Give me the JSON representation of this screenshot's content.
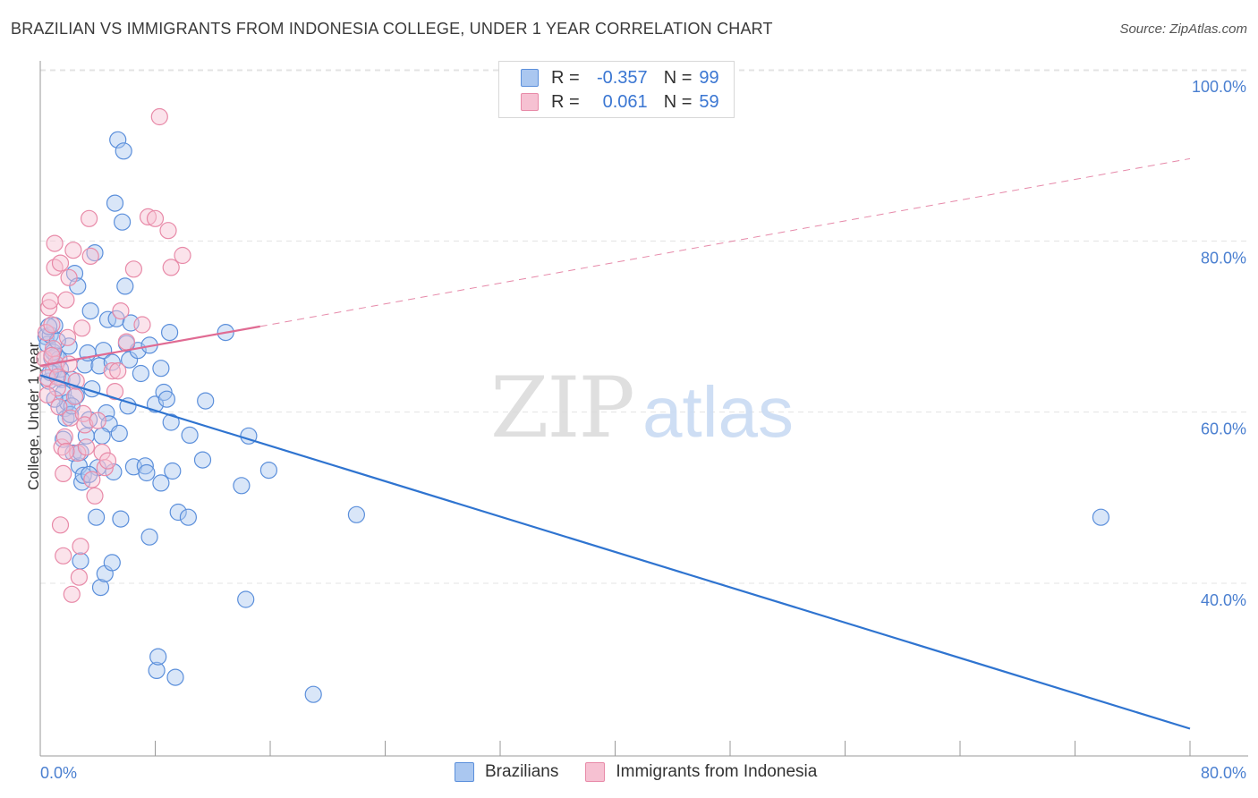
{
  "title": "BRAZILIAN VS IMMIGRANTS FROM INDONESIA COLLEGE, UNDER 1 YEAR CORRELATION CHART",
  "source": "Source: ZipAtlas.com",
  "watermark": {
    "zip": "ZIP",
    "atlas": "atlas"
  },
  "colors": {
    "blue": "#5b8fdb",
    "blue_fill": "#aac7f0",
    "blue_line": "#2f74d0",
    "pink": "#e88aa8",
    "pink_fill": "#f6c1d2",
    "pink_line": "#e06b93",
    "tick": "#4a7fd0",
    "grid": "#e3e3e3"
  },
  "legend": {
    "rows": [
      {
        "r_label": "R =",
        "r_value": "-0.357",
        "n_label": "N =",
        "n_value": "99"
      },
      {
        "r_label": "R =",
        "r_value": "0.061",
        "n_label": "N =",
        "n_value": "59"
      }
    ]
  },
  "bottom_legend": [
    "Brazilians",
    "Immigrants from Indonesia"
  ],
  "chart_data": {
    "type": "scatter",
    "title": "BRAZILIAN VS IMMIGRANTS FROM INDONESIA COLLEGE, UNDER 1 YEAR CORRELATION CHART",
    "xlabel": "",
    "ylabel": "College, Under 1 year",
    "xlim": [
      0,
      80
    ],
    "ylim": [
      20,
      102
    ],
    "x_tick_labels": [
      "0.0%",
      "80.0%"
    ],
    "y_ticks": [
      40,
      60,
      80,
      100
    ],
    "y_tick_labels": [
      "40.0%",
      "60.0%",
      "80.0%",
      "100.0%"
    ],
    "series": [
      {
        "name": "Brazilians",
        "color": "blue",
        "trend": {
          "x": [
            0,
            80
          ],
          "y": [
            66.3,
            25.0
          ],
          "dashed_from": null
        },
        "points": [
          [
            0.4,
            70.8
          ],
          [
            0.5,
            69.9
          ],
          [
            0.6,
            65.6
          ],
          [
            0.7,
            71.0
          ],
          [
            0.8,
            68.3
          ],
          [
            0.9,
            66.8
          ],
          [
            1.0,
            72.1
          ],
          [
            1.1,
            68.6
          ],
          [
            1.2,
            66.1
          ],
          [
            1.3,
            68.2
          ],
          [
            1.4,
            67.0
          ],
          [
            1.5,
            65.8
          ],
          [
            1.6,
            64.2
          ],
          [
            1.7,
            62.4
          ],
          [
            1.8,
            61.3
          ],
          [
            1.9,
            63.1
          ],
          [
            2.0,
            69.7
          ],
          [
            2.1,
            61.7
          ],
          [
            2.2,
            65.8
          ],
          [
            2.3,
            57.2
          ],
          [
            2.4,
            78.2
          ],
          [
            2.5,
            63.9
          ],
          [
            2.6,
            76.7
          ],
          [
            2.7,
            55.7
          ],
          [
            2.8,
            44.6
          ],
          [
            2.9,
            53.8
          ],
          [
            3.0,
            54.6
          ],
          [
            3.1,
            67.5
          ],
          [
            3.2,
            59.2
          ],
          [
            3.3,
            68.9
          ],
          [
            3.4,
            61.1
          ],
          [
            3.5,
            73.8
          ],
          [
            3.6,
            64.7
          ],
          [
            3.8,
            80.6
          ],
          [
            3.9,
            49.7
          ],
          [
            4.0,
            55.5
          ],
          [
            4.1,
            67.4
          ],
          [
            4.2,
            41.5
          ],
          [
            4.4,
            69.2
          ],
          [
            4.5,
            43.1
          ],
          [
            4.6,
            61.9
          ],
          [
            4.7,
            72.8
          ],
          [
            4.8,
            60.6
          ],
          [
            5.0,
            44.4
          ],
          [
            5.1,
            55.0
          ],
          [
            5.2,
            86.4
          ],
          [
            5.3,
            72.9
          ],
          [
            5.4,
            93.8
          ],
          [
            5.5,
            59.5
          ],
          [
            5.6,
            49.5
          ],
          [
            5.7,
            84.2
          ],
          [
            5.8,
            92.5
          ],
          [
            5.9,
            76.7
          ],
          [
            6.1,
            62.7
          ],
          [
            6.2,
            68.1
          ],
          [
            6.3,
            72.4
          ],
          [
            6.5,
            55.6
          ],
          [
            6.8,
            69.2
          ],
          [
            7.0,
            66.5
          ],
          [
            7.3,
            55.7
          ],
          [
            7.4,
            54.9
          ],
          [
            7.6,
            47.4
          ],
          [
            8.0,
            62.9
          ],
          [
            8.1,
            31.8
          ],
          [
            8.2,
            33.4
          ],
          [
            8.4,
            53.7
          ],
          [
            8.6,
            64.3
          ],
          [
            8.8,
            63.5
          ],
          [
            9.0,
            71.3
          ],
          [
            9.1,
            60.8
          ],
          [
            9.2,
            55.1
          ],
          [
            9.4,
            31.0
          ],
          [
            9.6,
            50.3
          ],
          [
            10.3,
            49.7
          ],
          [
            10.4,
            59.3
          ],
          [
            11.3,
            56.4
          ],
          [
            11.5,
            63.3
          ],
          [
            12.9,
            71.3
          ],
          [
            14.0,
            53.4
          ],
          [
            14.3,
            40.1
          ],
          [
            14.5,
            59.2
          ],
          [
            15.9,
            55.2
          ],
          [
            19.0,
            29.0
          ],
          [
            22.0,
            50.0
          ],
          [
            73.8,
            49.7
          ],
          [
            0.9,
            69.0
          ],
          [
            1.2,
            70.3
          ],
          [
            1.6,
            58.8
          ],
          [
            2.2,
            62.7
          ],
          [
            3.4,
            54.7
          ],
          [
            5.0,
            67.8
          ],
          [
            6.0,
            70.0
          ],
          [
            7.6,
            69.8
          ],
          [
            0.7,
            66.6
          ],
          [
            1.0,
            63.5
          ],
          [
            2.8,
            57.3
          ],
          [
            4.3,
            59.2
          ],
          [
            8.4,
            67.1
          ],
          [
            0.6,
            72.0
          ]
        ]
      },
      {
        "name": "Immigrants from Indonesia",
        "color": "pink",
        "trend": {
          "x": [
            0,
            15.3,
            80
          ],
          "y": [
            67.4,
            72.0,
            91.6
          ],
          "dashed_from": 15.3
        },
        "points": [
          [
            0.3,
            68.2
          ],
          [
            0.4,
            71.3
          ],
          [
            0.5,
            66.0
          ],
          [
            0.6,
            74.2
          ],
          [
            0.7,
            75.0
          ],
          [
            0.8,
            72.2
          ],
          [
            0.9,
            69.4
          ],
          [
            1.0,
            78.9
          ],
          [
            1.1,
            67.6
          ],
          [
            1.2,
            66.1
          ],
          [
            1.3,
            62.6
          ],
          [
            1.4,
            79.4
          ],
          [
            1.5,
            57.9
          ],
          [
            1.6,
            54.8
          ],
          [
            1.7,
            59.1
          ],
          [
            1.8,
            75.1
          ],
          [
            1.9,
            70.7
          ],
          [
            2.0,
            67.6
          ],
          [
            2.1,
            61.3
          ],
          [
            2.2,
            40.7
          ],
          [
            2.3,
            80.9
          ],
          [
            2.4,
            63.8
          ],
          [
            2.5,
            65.6
          ],
          [
            2.6,
            57.2
          ],
          [
            2.7,
            42.7
          ],
          [
            2.8,
            46.3
          ],
          [
            2.9,
            71.8
          ],
          [
            3.0,
            61.8
          ],
          [
            3.1,
            60.5
          ],
          [
            3.2,
            57.9
          ],
          [
            3.4,
            84.6
          ],
          [
            3.5,
            80.2
          ],
          [
            3.6,
            54.1
          ],
          [
            3.8,
            52.2
          ],
          [
            4.0,
            61.0
          ],
          [
            4.3,
            57.3
          ],
          [
            4.5,
            55.5
          ],
          [
            4.7,
            56.3
          ],
          [
            5.0,
            66.8
          ],
          [
            5.2,
            64.4
          ],
          [
            5.4,
            66.8
          ],
          [
            5.6,
            73.8
          ],
          [
            6.0,
            70.2
          ],
          [
            6.5,
            78.7
          ],
          [
            7.1,
            72.2
          ],
          [
            7.5,
            84.8
          ],
          [
            8.0,
            84.6
          ],
          [
            8.3,
            96.5
          ],
          [
            8.9,
            83.2
          ],
          [
            9.1,
            78.9
          ],
          [
            9.9,
            80.3
          ],
          [
            1.0,
            81.7
          ],
          [
            1.2,
            64.8
          ],
          [
            1.8,
            57.4
          ],
          [
            2.0,
            77.7
          ],
          [
            0.5,
            64.0
          ],
          [
            1.4,
            48.8
          ],
          [
            1.6,
            45.2
          ],
          [
            0.8,
            68.6
          ]
        ]
      }
    ]
  }
}
